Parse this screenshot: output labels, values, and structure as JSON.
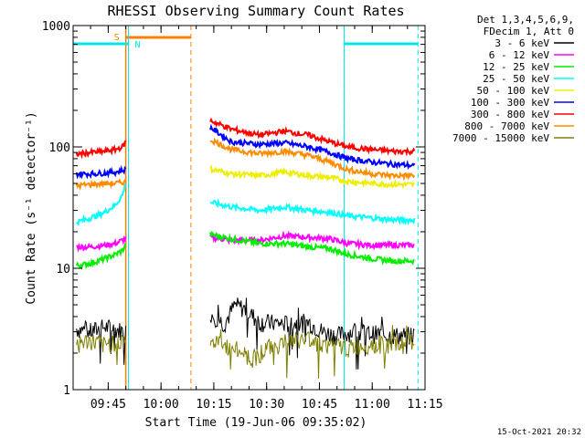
{
  "chart_data": {
    "type": "line",
    "title": "RHESSI Observing Summary Count Rates",
    "xlabel": "Start Time (19-Jun-06 09:35:02)",
    "ylabel": "Count Rate (s⁻¹ detector⁻¹)",
    "yscale": "log",
    "ylim": [
      1,
      1000
    ],
    "xlim": [
      "09:35:02",
      "11:15:00"
    ],
    "x_ticks": [
      "09:45",
      "10:00",
      "10:15",
      "10:30",
      "10:45",
      "11:00",
      "11:15"
    ],
    "y_ticks": [
      "1",
      "10",
      "100",
      "1000"
    ],
    "legend_header": [
      "Det 1,3,4,5,6,9,",
      "FDecim 1, Att 0"
    ],
    "legend_position": "right",
    "footer_date": "15-Oct-2021 20:32",
    "data_gaps": [
      [
        "09:50:30",
        "10:13:40"
      ]
    ],
    "flags": [
      {
        "label": "S",
        "type": "SAA",
        "start": "09:50:00",
        "end": "10:08:30",
        "color": "#ff7f00"
      },
      {
        "label": "N",
        "type": "Night",
        "start": "09:50:45",
        "end": "10:52:00",
        "color": "#00e5ee"
      }
    ],
    "night_bars": [
      [
        "09:35:02",
        "09:50:45"
      ],
      [
        "10:52:00",
        "11:13:00"
      ]
    ],
    "series": [
      {
        "name": "3 - 6 keV",
        "color": "#000000",
        "x": [
          "09:36",
          "09:40",
          "09:44",
          "09:48",
          "09:50",
          "10:14",
          "10:18",
          "10:21",
          "10:24",
          "10:28",
          "10:35",
          "10:42",
          "10:46",
          "10:50",
          "10:54",
          "11:00",
          "11:06",
          "11:12"
        ],
        "y": [
          3.2,
          3.0,
          3.3,
          3.1,
          3.0,
          4.3,
          3.5,
          5.0,
          4.6,
          3.6,
          3.5,
          3.6,
          3.0,
          2.8,
          3.0,
          2.9,
          2.8,
          2.8
        ]
      },
      {
        "name": "6 - 12 keV",
        "color": "#ff00ff",
        "x": [
          "09:36",
          "09:40",
          "09:44",
          "09:47",
          "09:49",
          "09:50",
          "10:14",
          "10:20",
          "10:28",
          "10:35",
          "10:42",
          "10:48",
          "10:53",
          "11:00",
          "11:06",
          "11:12"
        ],
        "y": [
          15,
          15,
          15.5,
          16,
          17,
          17.5,
          18,
          17,
          17,
          18.5,
          18,
          17.5,
          16,
          15.5,
          15.5,
          15.5
        ]
      },
      {
        "name": "12 - 25 keV",
        "color": "#00ee00",
        "x": [
          "09:36",
          "09:40",
          "09:44",
          "09:47",
          "09:49",
          "09:50",
          "10:14",
          "10:20",
          "10:28",
          "10:35",
          "10:42",
          "10:48",
          "10:53",
          "11:00",
          "11:06",
          "11:12"
        ],
        "y": [
          10.5,
          11,
          12,
          13,
          14,
          15.5,
          19,
          17.5,
          16,
          16,
          15,
          14.5,
          13,
          12,
          11.5,
          11.5
        ]
      },
      {
        "name": "25 - 50 keV",
        "color": "#00ffff",
        "x": [
          "09:36",
          "09:40",
          "09:44",
          "09:47",
          "09:49",
          "09:50",
          "10:14",
          "10:20",
          "10:28",
          "10:35",
          "10:42",
          "10:48",
          "10:53",
          "11:00",
          "11:06",
          "11:12"
        ],
        "y": [
          24,
          26,
          29,
          33,
          40,
          50,
          35,
          32,
          30,
          32,
          30,
          29,
          27,
          26,
          25,
          25
        ]
      },
      {
        "name": "50 - 100 keV",
        "color": "#eeee00",
        "x": [
          "10:14",
          "10:20",
          "10:28",
          "10:35",
          "10:42",
          "10:48",
          "10:53",
          "11:00",
          "11:06",
          "11:12"
        ],
        "y": [
          66,
          60,
          58,
          62,
          58,
          56,
          52,
          50,
          49,
          49
        ]
      },
      {
        "name": "100 - 300 keV",
        "color": "#0000ff",
        "x": [
          "09:36",
          "09:40",
          "09:44",
          "09:47",
          "09:49",
          "09:50",
          "10:14",
          "10:20",
          "10:28",
          "10:35",
          "10:42",
          "10:48",
          "10:53",
          "11:00",
          "11:06",
          "11:12"
        ],
        "y": [
          60,
          60,
          61,
          62,
          64,
          65,
          145,
          110,
          105,
          108,
          100,
          90,
          80,
          75,
          72,
          70
        ]
      },
      {
        "name": "300 - 800 keV",
        "color": "#ff0000",
        "x": [
          "09:36",
          "09:40",
          "09:44",
          "09:47",
          "09:49",
          "09:50",
          "10:14",
          "10:20",
          "10:28",
          "10:35",
          "10:42",
          "10:48",
          "10:53",
          "11:00",
          "11:06",
          "11:12"
        ],
        "y": [
          87,
          90,
          92,
          95,
          100,
          110,
          165,
          140,
          125,
          135,
          125,
          110,
          100,
          95,
          92,
          92
        ]
      },
      {
        "name": "800 - 7000 keV",
        "color": "#ff8c00",
        "x": [
          "09:36",
          "09:40",
          "09:44",
          "09:47",
          "09:49",
          "09:50",
          "10:14",
          "10:20",
          "10:28",
          "10:35",
          "10:42",
          "10:48",
          "10:53",
          "11:00",
          "11:06",
          "11:12"
        ],
        "y": [
          48,
          49,
          50,
          50,
          51,
          52,
          115,
          95,
          88,
          92,
          85,
          75,
          65,
          60,
          58,
          58
        ]
      },
      {
        "name": "7000 - 15000 keV",
        "color": "#808000",
        "x": [
          "09:36",
          "09:40",
          "09:44",
          "09:48",
          "09:50",
          "10:14",
          "10:18",
          "10:22",
          "10:26",
          "10:30",
          "10:36",
          "10:42",
          "10:48",
          "10:54",
          "11:00",
          "11:06",
          "11:12"
        ],
        "y": [
          2.4,
          2.5,
          2.3,
          2.6,
          2.4,
          2.5,
          2.3,
          2.1,
          1.8,
          2.2,
          2.5,
          2.6,
          2.3,
          2.2,
          2.4,
          2.3,
          2.5
        ]
      }
    ]
  }
}
